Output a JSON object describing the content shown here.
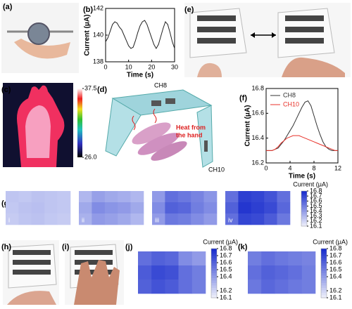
{
  "panel_labels": [
    "(a)",
    "(b)",
    "(c)",
    "(d)",
    "(e)",
    "(f)",
    "(g)",
    "(h)",
    "(i)",
    "(j)",
    "(k)"
  ],
  "diagram": {
    "top_channel": "CH8",
    "side_channel": "CH10",
    "heat_lines": [
      "Heat from",
      "the hand"
    ]
  },
  "chart_data": [
    {
      "type": "line",
      "xlabel": "Time (s)",
      "ylabel": "Current (μA)",
      "x": [
        0,
        1,
        2,
        3,
        4,
        5,
        6,
        7,
        8,
        9,
        10,
        11,
        12,
        13,
        14,
        15,
        16,
        17,
        18,
        19,
        20,
        21,
        22,
        23,
        24,
        25,
        26,
        27,
        28,
        29,
        30
      ],
      "values": [
        139.5,
        139.8,
        140.3,
        140.8,
        141.0,
        140.9,
        140.6,
        140.4,
        140.0,
        139.6,
        139.2,
        139.0,
        139.1,
        139.6,
        140.2,
        140.7,
        141.0,
        141.1,
        140.8,
        140.3,
        139.8,
        139.3,
        139.0,
        139.3,
        139.9,
        140.5,
        141.0,
        140.8,
        140.2,
        139.5,
        139.0
      ],
      "color": "#222222",
      "xlim": [
        0,
        30
      ],
      "xticks": [
        0,
        10,
        20,
        30
      ],
      "ylim": [
        138,
        142
      ],
      "yticks": [
        138,
        140,
        142
      ]
    },
    {
      "type": "line",
      "xlabel": "Time (s)",
      "ylabel": "Current (μA)",
      "x": [
        0,
        0.5,
        1,
        1.5,
        2,
        2.5,
        3,
        3.5,
        4,
        4.5,
        5,
        5.5,
        6,
        6.5,
        7,
        7.5,
        8,
        8.5,
        9,
        9.5,
        10,
        10.5,
        11,
        11.5,
        12
      ],
      "series": [
        {
          "name": "CH8",
          "color": "#333333",
          "values": [
            16.3,
            16.3,
            16.3,
            16.31,
            16.32,
            16.35,
            16.38,
            16.42,
            16.46,
            16.5,
            16.55,
            16.6,
            16.65,
            16.69,
            16.7,
            16.66,
            16.58,
            16.5,
            16.43,
            16.37,
            16.33,
            16.31,
            16.3,
            16.3,
            16.3
          ]
        },
        {
          "name": "CH10",
          "color": "#e8322a",
          "values": [
            16.3,
            16.3,
            16.3,
            16.31,
            16.33,
            16.36,
            16.38,
            16.4,
            16.41,
            16.42,
            16.42,
            16.42,
            16.41,
            16.4,
            16.39,
            16.38,
            16.37,
            16.36,
            16.35,
            16.34,
            16.33,
            16.32,
            16.31,
            16.3,
            16.3
          ]
        }
      ],
      "xlim": [
        0,
        12
      ],
      "xticks": [
        0,
        4,
        8,
        12
      ],
      "ylim": [
        16.2,
        16.8
      ],
      "yticks": [
        16.2,
        16.4,
        16.6,
        16.8
      ],
      "legend": "upper-left"
    },
    {
      "type": "thermal",
      "clim": [
        26,
        37.5
      ],
      "cticks": [
        37.5,
        {
          "value": 26,
          "label": "26.0"
        }
      ]
    },
    {
      "type": "heatmap",
      "colorbar_title": "Current (μA)",
      "clim": [
        16.1,
        16.8
      ],
      "cticks": [
        16.8,
        16.7,
        16.6,
        16.5,
        16.4,
        16.3,
        16.2,
        16.1
      ],
      "low_color": "#eef0fb",
      "high_color": "#1428cc",
      "panels": [
        {
          "label": "i",
          "values": [
            [
              16.25,
              16.24,
              16.26,
              16.25,
              16.24
            ],
            [
              16.24,
              16.26,
              16.27,
              16.25,
              16.24
            ],
            [
              16.23,
              16.25,
              16.26,
              16.24,
              16.23
            ]
          ]
        },
        {
          "label": "ii",
          "values": [
            [
              16.3,
              16.38,
              16.35,
              16.33,
              16.3
            ],
            [
              16.35,
              16.45,
              16.42,
              16.4,
              16.35
            ],
            [
              16.32,
              16.4,
              16.38,
              16.35,
              16.3
            ]
          ]
        },
        {
          "label": "iii",
          "values": [
            [
              16.4,
              16.55,
              16.52,
              16.48,
              16.42
            ],
            [
              16.45,
              16.6,
              16.58,
              16.5,
              16.45
            ],
            [
              16.4,
              16.52,
              16.5,
              16.45,
              16.4
            ]
          ]
        },
        {
          "label": "iv",
          "values": [
            [
              16.55,
              16.72,
              16.7,
              16.65,
              16.55
            ],
            [
              16.6,
              16.75,
              16.72,
              16.68,
              16.58
            ],
            [
              16.55,
              16.7,
              16.68,
              16.62,
              16.52
            ]
          ]
        }
      ]
    },
    {
      "type": "heatmap",
      "colorbar_title": "Current (μA)",
      "clim": [
        16.1,
        16.8
      ],
      "cticks": [
        16.8,
        16.7,
        16.6,
        16.5,
        16.4,
        16.2,
        16.1
      ],
      "low_color": "#eef0fb",
      "high_color": "#1428cc",
      "panels": [
        {
          "values": [
            [
              16.55,
              16.6,
              16.58,
              16.45,
              16.4
            ],
            [
              16.62,
              16.68,
              16.66,
              16.55,
              16.5
            ],
            [
              16.6,
              16.65,
              16.62,
              16.55,
              16.5
            ]
          ]
        }
      ]
    },
    {
      "type": "heatmap",
      "colorbar_title": "Current (μA)",
      "clim": [
        16.1,
        16.8
      ],
      "cticks": [
        16.8,
        16.7,
        16.6,
        16.5,
        16.4,
        16.2,
        16.1
      ],
      "low_color": "#eef0fb",
      "high_color": "#1428cc",
      "panels": [
        {
          "values": [
            [
              16.5,
              16.55,
              16.52,
              16.5,
              16.48
            ],
            [
              16.55,
              16.6,
              16.58,
              16.55,
              16.5
            ],
            [
              16.52,
              16.58,
              16.55,
              16.52,
              16.5
            ]
          ]
        }
      ]
    }
  ]
}
